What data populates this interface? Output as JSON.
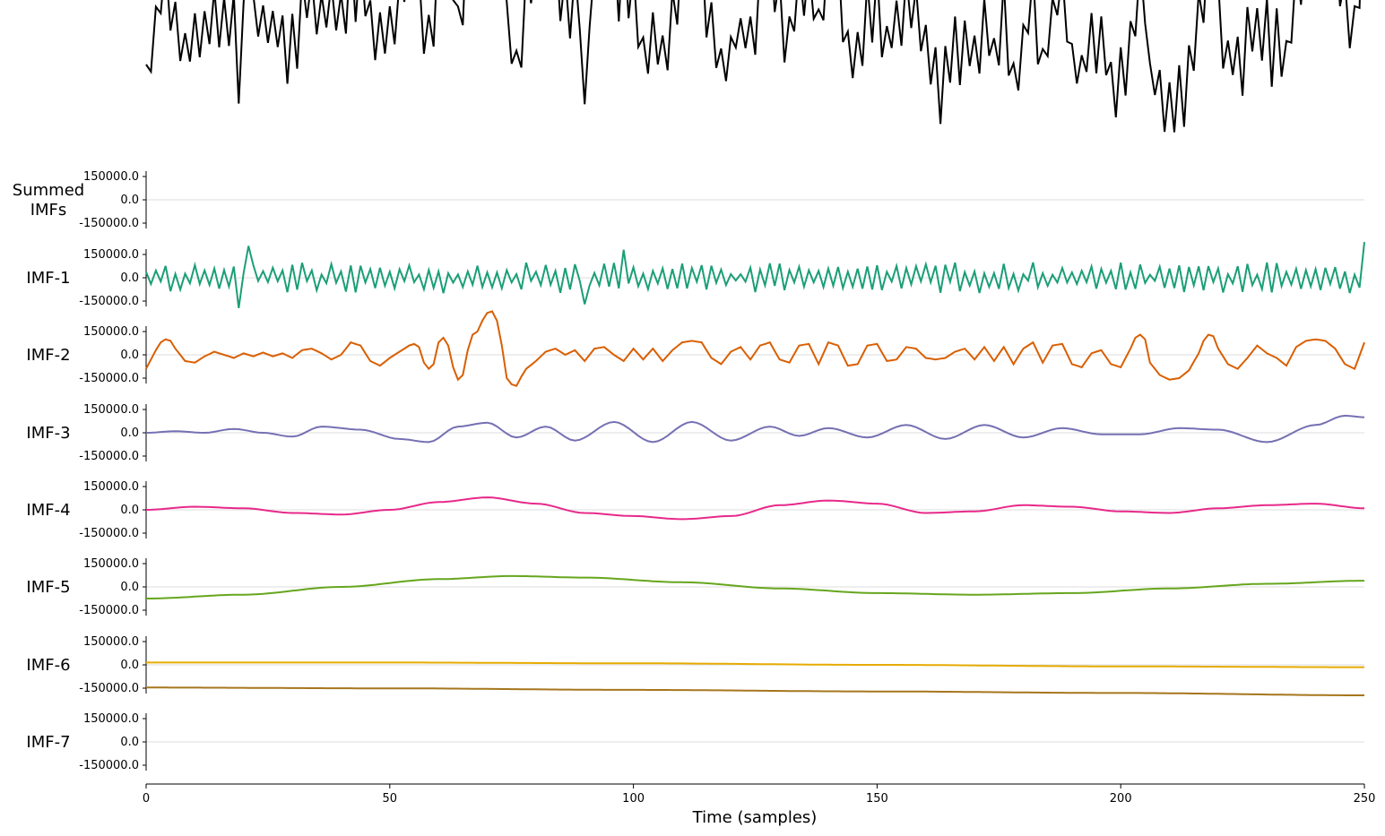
{
  "chart_data": {
    "type": "line",
    "xlabel": "Time (samples)",
    "xlim": [
      0,
      250
    ],
    "x_ticks": [
      0,
      50,
      100,
      150,
      200,
      250
    ],
    "x_tick_labels": [
      "0",
      "50",
      "100",
      "150",
      "200",
      "250"
    ],
    "ylim": [
      -150000,
      150000
    ],
    "y_ticks": [
      150000,
      0,
      -150000
    ],
    "y_tick_labels": [
      "150000.0",
      "0.0",
      "-150000.0"
    ],
    "rows": [
      {
        "label": "Summed\nIMFs",
        "color": "#000000",
        "kind": "sum"
      },
      {
        "label": "IMF-1",
        "color": "#1b9e77",
        "kind": "noise",
        "amplitude": 90000,
        "seed": 11,
        "spikes": [
          [
            21,
            205000
          ],
          [
            19,
            -195000
          ],
          [
            90,
            -170000
          ],
          [
            98,
            180000
          ],
          [
            250,
            230000
          ]
        ]
      },
      {
        "label": "IMF-2",
        "color": "#d95f02",
        "kind": "wavelet",
        "keypoints": [
          [
            0,
            -90000
          ],
          [
            2,
            30000
          ],
          [
            3,
            80000
          ],
          [
            4,
            100000
          ],
          [
            5,
            90000
          ],
          [
            6,
            40000
          ],
          [
            8,
            -40000
          ],
          [
            10,
            -50000
          ],
          [
            12,
            -10000
          ],
          [
            14,
            20000
          ],
          [
            16,
            0
          ],
          [
            18,
            -20000
          ],
          [
            20,
            10000
          ],
          [
            22,
            -10000
          ],
          [
            24,
            15000
          ],
          [
            26,
            -10000
          ],
          [
            28,
            10000
          ],
          [
            30,
            -20000
          ],
          [
            32,
            30000
          ],
          [
            34,
            40000
          ],
          [
            36,
            10000
          ],
          [
            38,
            -30000
          ],
          [
            40,
            0
          ],
          [
            42,
            80000
          ],
          [
            44,
            60000
          ],
          [
            46,
            -40000
          ],
          [
            48,
            -70000
          ],
          [
            50,
            -20000
          ],
          [
            52,
            20000
          ],
          [
            54,
            60000
          ],
          [
            55,
            70000
          ],
          [
            56,
            50000
          ],
          [
            57,
            -50000
          ],
          [
            58,
            -90000
          ],
          [
            59,
            -60000
          ],
          [
            60,
            80000
          ],
          [
            61,
            110000
          ],
          [
            62,
            60000
          ],
          [
            63,
            -80000
          ],
          [
            64,
            -160000
          ],
          [
            65,
            -130000
          ],
          [
            66,
            30000
          ],
          [
            67,
            130000
          ],
          [
            68,
            150000
          ],
          [
            69,
            220000
          ],
          [
            70,
            270000
          ],
          [
            71,
            280000
          ],
          [
            72,
            220000
          ],
          [
            73,
            60000
          ],
          [
            74,
            -150000
          ],
          [
            75,
            -190000
          ],
          [
            76,
            -200000
          ],
          [
            77,
            -140000
          ],
          [
            78,
            -90000
          ],
          [
            80,
            -40000
          ],
          [
            82,
            20000
          ],
          [
            84,
            40000
          ],
          [
            86,
            0
          ],
          [
            88,
            30000
          ],
          [
            90,
            -40000
          ],
          [
            92,
            40000
          ],
          [
            94,
            50000
          ],
          [
            96,
            0
          ],
          [
            98,
            -40000
          ],
          [
            100,
            40000
          ],
          [
            102,
            -30000
          ],
          [
            104,
            40000
          ],
          [
            106,
            -40000
          ],
          [
            108,
            30000
          ],
          [
            110,
            80000
          ],
          [
            112,
            90000
          ],
          [
            114,
            80000
          ],
          [
            116,
            -20000
          ],
          [
            118,
            -60000
          ],
          [
            120,
            20000
          ],
          [
            122,
            50000
          ],
          [
            124,
            -30000
          ],
          [
            126,
            60000
          ],
          [
            128,
            80000
          ],
          [
            130,
            -30000
          ],
          [
            132,
            -50000
          ],
          [
            134,
            60000
          ],
          [
            136,
            70000
          ],
          [
            138,
            -60000
          ],
          [
            140,
            80000
          ],
          [
            142,
            60000
          ],
          [
            144,
            -70000
          ],
          [
            146,
            -60000
          ],
          [
            148,
            60000
          ],
          [
            150,
            70000
          ],
          [
            152,
            -40000
          ],
          [
            154,
            -30000
          ],
          [
            156,
            50000
          ],
          [
            158,
            40000
          ],
          [
            160,
            -20000
          ],
          [
            162,
            -30000
          ],
          [
            164,
            -20000
          ],
          [
            166,
            20000
          ],
          [
            168,
            40000
          ],
          [
            170,
            -30000
          ],
          [
            172,
            50000
          ],
          [
            174,
            -40000
          ],
          [
            176,
            50000
          ],
          [
            178,
            -60000
          ],
          [
            180,
            40000
          ],
          [
            182,
            80000
          ],
          [
            184,
            -50000
          ],
          [
            186,
            60000
          ],
          [
            188,
            70000
          ],
          [
            190,
            -60000
          ],
          [
            192,
            -80000
          ],
          [
            194,
            10000
          ],
          [
            196,
            30000
          ],
          [
            198,
            -60000
          ],
          [
            200,
            -80000
          ],
          [
            202,
            40000
          ],
          [
            203,
            110000
          ],
          [
            204,
            130000
          ],
          [
            205,
            100000
          ],
          [
            206,
            -50000
          ],
          [
            208,
            -130000
          ],
          [
            210,
            -160000
          ],
          [
            212,
            -150000
          ],
          [
            214,
            -100000
          ],
          [
            216,
            10000
          ],
          [
            217,
            90000
          ],
          [
            218,
            130000
          ],
          [
            219,
            120000
          ],
          [
            220,
            40000
          ],
          [
            222,
            -60000
          ],
          [
            224,
            -90000
          ],
          [
            226,
            -20000
          ],
          [
            228,
            60000
          ],
          [
            230,
            10000
          ],
          [
            232,
            -20000
          ],
          [
            234,
            -70000
          ],
          [
            236,
            50000
          ],
          [
            238,
            90000
          ],
          [
            240,
            100000
          ],
          [
            242,
            90000
          ],
          [
            244,
            40000
          ],
          [
            246,
            -60000
          ],
          [
            248,
            -90000
          ],
          [
            250,
            80000
          ]
        ]
      },
      {
        "label": "IMF-3",
        "color": "#7570b3",
        "kind": "wavelet",
        "keypoints": [
          [
            0,
            0
          ],
          [
            6,
            10000
          ],
          [
            12,
            0
          ],
          [
            18,
            25000
          ],
          [
            24,
            0
          ],
          [
            30,
            -25000
          ],
          [
            36,
            40000
          ],
          [
            44,
            20000
          ],
          [
            52,
            -40000
          ],
          [
            58,
            -60000
          ],
          [
            64,
            40000
          ],
          [
            70,
            65000
          ],
          [
            76,
            -30000
          ],
          [
            82,
            40000
          ],
          [
            88,
            -50000
          ],
          [
            96,
            70000
          ],
          [
            104,
            -60000
          ],
          [
            112,
            70000
          ],
          [
            120,
            -50000
          ],
          [
            128,
            40000
          ],
          [
            134,
            -20000
          ],
          [
            140,
            30000
          ],
          [
            148,
            -30000
          ],
          [
            156,
            50000
          ],
          [
            164,
            -40000
          ],
          [
            172,
            50000
          ],
          [
            180,
            -30000
          ],
          [
            188,
            30000
          ],
          [
            196,
            -10000
          ],
          [
            204,
            -10000
          ],
          [
            212,
            30000
          ],
          [
            220,
            20000
          ],
          [
            230,
            -60000
          ],
          [
            240,
            50000
          ],
          [
            246,
            110000
          ],
          [
            250,
            100000
          ]
        ]
      },
      {
        "label": "IMF-4",
        "color": "#e7298a",
        "kind": "wavelet",
        "keypoints": [
          [
            0,
            0
          ],
          [
            10,
            20000
          ],
          [
            20,
            10000
          ],
          [
            30,
            -20000
          ],
          [
            40,
            -30000
          ],
          [
            50,
            0
          ],
          [
            60,
            50000
          ],
          [
            70,
            80000
          ],
          [
            80,
            40000
          ],
          [
            90,
            -20000
          ],
          [
            100,
            -40000
          ],
          [
            110,
            -60000
          ],
          [
            120,
            -40000
          ],
          [
            130,
            30000
          ],
          [
            140,
            60000
          ],
          [
            150,
            40000
          ],
          [
            160,
            -20000
          ],
          [
            170,
            -10000
          ],
          [
            180,
            30000
          ],
          [
            190,
            20000
          ],
          [
            200,
            -10000
          ],
          [
            210,
            -20000
          ],
          [
            220,
            10000
          ],
          [
            230,
            30000
          ],
          [
            240,
            40000
          ],
          [
            250,
            10000
          ]
        ]
      },
      {
        "label": "IMF-5",
        "color": "#66a61e",
        "kind": "wavelet",
        "keypoints": [
          [
            0,
            -75000
          ],
          [
            20,
            -50000
          ],
          [
            40,
            0
          ],
          [
            60,
            50000
          ],
          [
            75,
            70000
          ],
          [
            90,
            60000
          ],
          [
            110,
            30000
          ],
          [
            130,
            -10000
          ],
          [
            150,
            -40000
          ],
          [
            170,
            -50000
          ],
          [
            190,
            -40000
          ],
          [
            210,
            -10000
          ],
          [
            230,
            20000
          ],
          [
            250,
            40000
          ]
        ]
      },
      {
        "label": "IMF-6",
        "color": "#e6ab02",
        "kind": "wavelet",
        "keypoints": [
          [
            0,
            15000
          ],
          [
            50,
            15000
          ],
          [
            100,
            10000
          ],
          [
            150,
            0
          ],
          [
            200,
            -10000
          ],
          [
            250,
            -15000
          ]
        ]
      },
      {
        "label": "IMF-7",
        "color": "#a6761d",
        "kind": "wavelet",
        "keypoints": [
          [
            0,
            350000
          ],
          [
            50,
            345000
          ],
          [
            100,
            335000
          ],
          [
            150,
            325000
          ],
          [
            200,
            315000
          ],
          [
            250,
            300000
          ]
        ]
      }
    ]
  }
}
